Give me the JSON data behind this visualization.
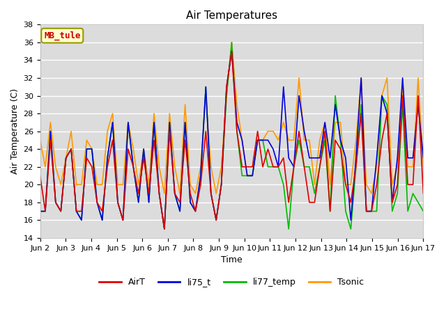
{
  "title": "Air Temperatures",
  "xlabel": "Time",
  "ylabel": "Air Temperature (C)",
  "ylim": [
    14,
    38
  ],
  "yticks": [
    14,
    16,
    18,
    20,
    22,
    24,
    26,
    28,
    30,
    32,
    34,
    36,
    38
  ],
  "bg_color": "#dcdcdc",
  "fig_bg": "#ffffff",
  "annotation_text": "MB_tule",
  "annotation_color": "#cc0000",
  "annotation_bg": "#ffffcc",
  "annotation_border": "#999900",
  "colors": {
    "AirT": "#dd0000",
    "li75_t": "#0000dd",
    "li77_temp": "#00bb00",
    "Tsonic": "#ff9900"
  },
  "x_labels": [
    "Jun 2",
    "Jun 3",
    "Jun 4",
    "Jun 5",
    "Jun 6",
    "Jun 7",
    "Jun 8",
    "Jun 9",
    "Jun 10",
    "Jun 11",
    "Jun 12",
    "Jun 13",
    "Jun 14",
    "Jun 15",
    "Jun 16",
    "Jun 17"
  ],
  "series": {
    "AirT": [
      21,
      17,
      25,
      18,
      17,
      23,
      24,
      17,
      17,
      23,
      22,
      18,
      17,
      22,
      25,
      18,
      16,
      24,
      22,
      19,
      23,
      19,
      25,
      19,
      15,
      26,
      19,
      18,
      25,
      19,
      17,
      20,
      26,
      19,
      16,
      20,
      31,
      35,
      26,
      22,
      22,
      22,
      26,
      22,
      24,
      22,
      22,
      23,
      18,
      22,
      26,
      22,
      18,
      18,
      22,
      26,
      17,
      25,
      24,
      20,
      18,
      22,
      28,
      17,
      17,
      20,
      25,
      28,
      18,
      20,
      30,
      20,
      20,
      30,
      19
    ],
    "li75_t": [
      17,
      17,
      26,
      18,
      17,
      23,
      24,
      17,
      16,
      24,
      24,
      18,
      16,
      23,
      27,
      18,
      16,
      27,
      22,
      18,
      24,
      18,
      27,
      19,
      15,
      27,
      19,
      17,
      27,
      18,
      17,
      21,
      31,
      19,
      16,
      20,
      31,
      35,
      27,
      25,
      21,
      21,
      25,
      25,
      25,
      24,
      22,
      31,
      23,
      22,
      30,
      26,
      23,
      23,
      23,
      27,
      23,
      29,
      25,
      23,
      16,
      23,
      32,
      17,
      17,
      23,
      30,
      28,
      18,
      23,
      32,
      23,
      23,
      29,
      23
    ],
    "li77_temp": [
      17,
      17,
      26,
      18,
      17,
      23,
      24,
      17,
      16,
      24,
      24,
      18,
      16,
      23,
      27,
      18,
      16,
      27,
      22,
      18,
      24,
      18,
      27,
      19,
      15,
      27,
      19,
      17,
      27,
      18,
      17,
      21,
      31,
      19,
      16,
      20,
      30,
      36,
      26,
      21,
      21,
      21,
      25,
      25,
      22,
      22,
      22,
      20,
      15,
      22,
      25,
      22,
      22,
      19,
      22,
      25,
      17,
      30,
      25,
      17,
      15,
      22,
      29,
      17,
      17,
      17,
      30,
      29,
      17,
      19,
      29,
      17,
      19,
      18,
      17
    ],
    "Tsonic": [
      25,
      22,
      27,
      22,
      20,
      23,
      26,
      20,
      20,
      25,
      24,
      20,
      20,
      26,
      28,
      20,
      20,
      27,
      24,
      20,
      24,
      20,
      28,
      22,
      19,
      28,
      22,
      19,
      29,
      20,
      19,
      22,
      30,
      22,
      19,
      22,
      30,
      36,
      29,
      25,
      21,
      21,
      25,
      25,
      26,
      26,
      25,
      27,
      25,
      25,
      32,
      25,
      25,
      20,
      25,
      27,
      20,
      27,
      27,
      20,
      20,
      25,
      32,
      20,
      19,
      22,
      30,
      32,
      20,
      22,
      31,
      22,
      22,
      32,
      22
    ]
  },
  "linewidth": 1.2,
  "title_fontsize": 11,
  "axis_fontsize": 9,
  "tick_fontsize": 8,
  "legend_fontsize": 9
}
